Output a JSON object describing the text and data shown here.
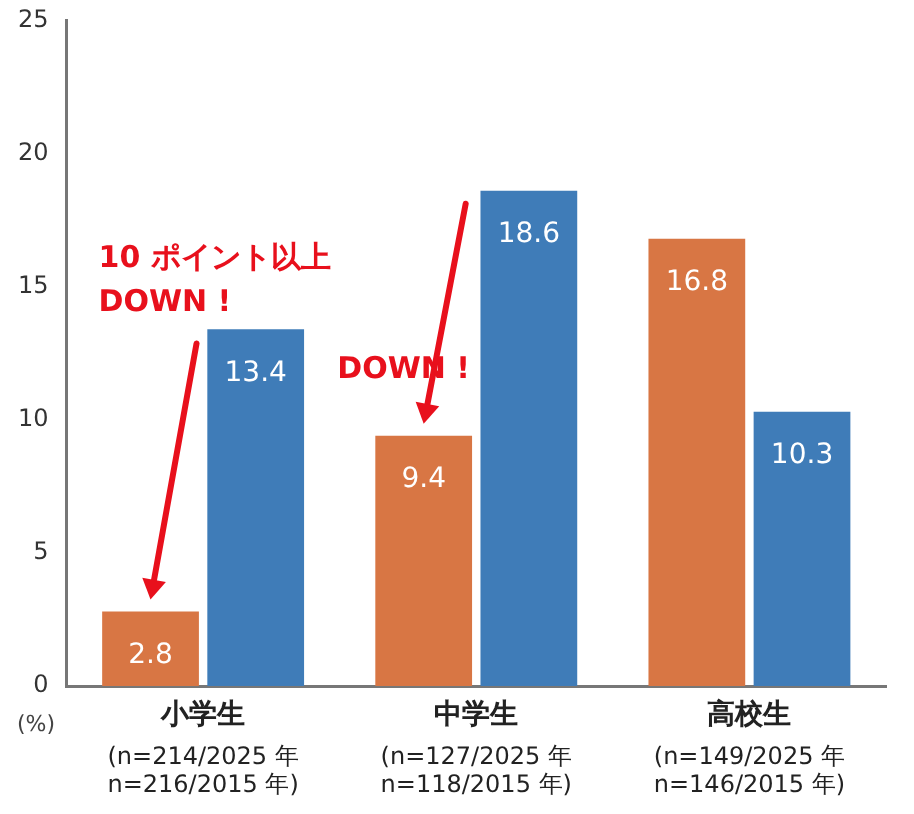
{
  "chart_data": {
    "type": "bar",
    "categories": [
      "小学生\n(n=214/2025 年\nn=216/2015 年)",
      "中学生\n(n=127/2025 年\nn=118/2015 年)",
      "高校生\n(n=149/2025 年\nn=146/2015 年)"
    ],
    "series": [
      {
        "color": "#d87644",
        "values": [
          2.8,
          9.4,
          16.8
        ]
      },
      {
        "color": "#3f7cb8",
        "values": [
          13.4,
          18.6,
          10.3
        ]
      }
    ],
    "ylabel": "(%)",
    "ylim": [
      0,
      25
    ],
    "yticks": [
      0,
      5,
      10,
      15,
      20,
      25
    ],
    "grid": false,
    "legend": false,
    "data_labels": true,
    "annotations": [
      "10 ポイント以上\nDOWN !",
      "DOWN !"
    ]
  }
}
